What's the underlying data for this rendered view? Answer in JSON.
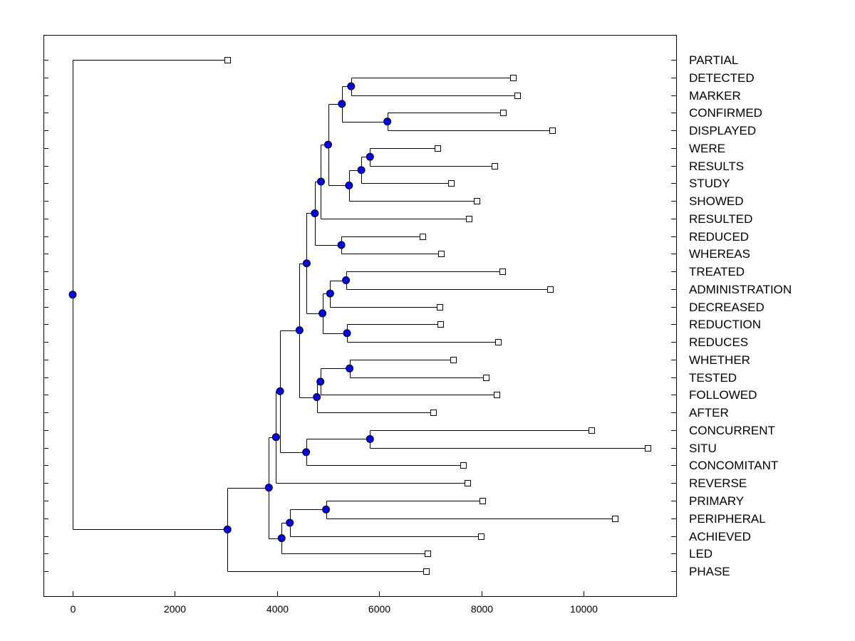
{
  "chart_data": {
    "type": "dendrogram",
    "x_ticks": [
      0,
      2000,
      4000,
      6000,
      8000,
      10000
    ],
    "xlim": [
      -600,
      11800
    ],
    "colors": {
      "node": "#0000ff",
      "leaf": "#ffffff",
      "line": "#000000"
    },
    "leaves": [
      {
        "label": "PARTIAL",
        "x": 3030
      },
      {
        "label": "DETECTED",
        "x": 8620
      },
      {
        "label": "MARKER",
        "x": 8700
      },
      {
        "label": "CONFIRMED",
        "x": 8420
      },
      {
        "label": "DISPLAYED",
        "x": 9380
      },
      {
        "label": "WERE",
        "x": 7140
      },
      {
        "label": "RESULTS",
        "x": 8260
      },
      {
        "label": "STUDY",
        "x": 7410
      },
      {
        "label": "SHOWED",
        "x": 7910
      },
      {
        "label": "RESULTED",
        "x": 7760
      },
      {
        "label": "REDUCED",
        "x": 6850
      },
      {
        "label": "WHEREAS",
        "x": 7210
      },
      {
        "label": "TREATED",
        "x": 8410
      },
      {
        "label": "ADMINISTRATION",
        "x": 9340
      },
      {
        "label": "DECREASED",
        "x": 7180
      },
      {
        "label": "REDUCTION",
        "x": 7190
      },
      {
        "label": "REDUCES",
        "x": 8330
      },
      {
        "label": "WHETHER",
        "x": 7450
      },
      {
        "label": "TESTED",
        "x": 8090
      },
      {
        "label": "FOLLOWED",
        "x": 8300
      },
      {
        "label": "AFTER",
        "x": 7060
      },
      {
        "label": "CONCURRENT",
        "x": 10150
      },
      {
        "label": "SITU",
        "x": 11260
      },
      {
        "label": "CONCOMITANT",
        "x": 7640
      },
      {
        "label": "REVERSE",
        "x": 7720
      },
      {
        "label": "PRIMARY",
        "x": 8020
      },
      {
        "label": "PERIPHERAL",
        "x": 10610
      },
      {
        "label": "ACHIEVED",
        "x": 7990
      },
      {
        "label": "LED",
        "x": 6940
      },
      {
        "label": "PHASE",
        "x": 6920
      }
    ],
    "nodes": [
      {
        "id": "n1",
        "x": 5450,
        "children": [
          "L1",
          "L2"
        ]
      },
      {
        "id": "n2",
        "x": 6160,
        "children": [
          "L3",
          "L4"
        ]
      },
      {
        "id": "n3",
        "x": 5270,
        "children": [
          "n1",
          "n2"
        ]
      },
      {
        "id": "n4",
        "x": 5820,
        "children": [
          "L5",
          "L6"
        ]
      },
      {
        "id": "n5",
        "x": 5650,
        "children": [
          "n4",
          "L7"
        ]
      },
      {
        "id": "n6",
        "x": 5410,
        "children": [
          "n5",
          "L8"
        ]
      },
      {
        "id": "n7",
        "x": 5000,
        "children": [
          "n3",
          "n6"
        ]
      },
      {
        "id": "n8",
        "x": 4860,
        "children": [
          "n7",
          "L9"
        ]
      },
      {
        "id": "n9",
        "x": 5260,
        "children": [
          "L10",
          "L11"
        ]
      },
      {
        "id": "n10",
        "x": 4740,
        "children": [
          "n8",
          "n9"
        ]
      },
      {
        "id": "n11",
        "x": 5350,
        "children": [
          "L12",
          "L13"
        ]
      },
      {
        "id": "n12",
        "x": 5040,
        "children": [
          "n11",
          "L14"
        ]
      },
      {
        "id": "n13",
        "x": 5370,
        "children": [
          "L15",
          "L16"
        ]
      },
      {
        "id": "n14",
        "x": 4890,
        "children": [
          "n12",
          "n13"
        ]
      },
      {
        "id": "n15",
        "x": 4580,
        "children": [
          "n10",
          "n14"
        ]
      },
      {
        "id": "n16",
        "x": 5420,
        "children": [
          "L17",
          "L18"
        ]
      },
      {
        "id": "n17",
        "x": 4850,
        "children": [
          "n16",
          "L19"
        ]
      },
      {
        "id": "n18",
        "x": 4780,
        "children": [
          "n17",
          "L20"
        ]
      },
      {
        "id": "n19",
        "x": 4440,
        "children": [
          "n15",
          "n18"
        ]
      },
      {
        "id": "n20",
        "x": 5820,
        "children": [
          "L21",
          "L22"
        ]
      },
      {
        "id": "n21",
        "x": 4570,
        "children": [
          "n20",
          "L23"
        ]
      },
      {
        "id": "n22",
        "x": 4060,
        "children": [
          "n19",
          "n21"
        ]
      },
      {
        "id": "n23",
        "x": 3980,
        "children": [
          "n22",
          "L24"
        ]
      },
      {
        "id": "n24",
        "x": 4960,
        "children": [
          "L25",
          "L26"
        ]
      },
      {
        "id": "n25",
        "x": 4250,
        "children": [
          "n24",
          "L27"
        ]
      },
      {
        "id": "n26",
        "x": 4090,
        "children": [
          "n25",
          "L28"
        ]
      },
      {
        "id": "n27",
        "x": 3840,
        "children": [
          "n23",
          "n26"
        ]
      },
      {
        "id": "n28",
        "x": 3030,
        "children": [
          "n27",
          "L29"
        ]
      },
      {
        "id": "root",
        "x": 0,
        "children": [
          "L0",
          "n28"
        ]
      }
    ]
  }
}
